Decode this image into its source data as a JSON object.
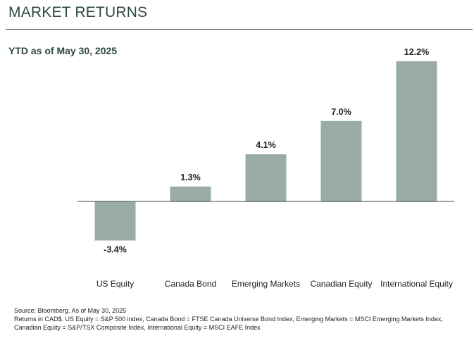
{
  "header": {
    "title": "MARKET RETURNS",
    "subtitle": "YTD as of May 30, 2025"
  },
  "footnotes": {
    "source": "Source: Bloomberg. As of May 30, 2025",
    "returns": "Returns in CAD$. US Equity = S&P 500 index, Canada Bond = FTSE Canada Universe Bond Index, Emerging Markets = MSCI Emerging Markets Index, Canadian Equity =  S&P/TSX Composite Index, International Equity = MSCI EAFE Index"
  },
  "colors": {
    "bar": "#9aaca8",
    "axis": "#3a4a44",
    "heading": "#2d4a3a"
  },
  "chart_data": {
    "type": "bar",
    "title": "MARKET RETURNS",
    "subtitle": "YTD as of May 30, 2025",
    "categories": [
      "US Equity",
      "Canada Bond",
      "Emerging Markets",
      "Canadian Equity",
      "International Equity"
    ],
    "values": [
      -3.4,
      1.3,
      4.1,
      7.0,
      12.2
    ],
    "value_labels": [
      "-3.4%",
      "1.3%",
      "4.1%",
      "7.0%",
      "12.2%"
    ],
    "unit": "%",
    "ylim": [
      -4,
      12.5
    ],
    "grid": false,
    "legend": "none"
  }
}
